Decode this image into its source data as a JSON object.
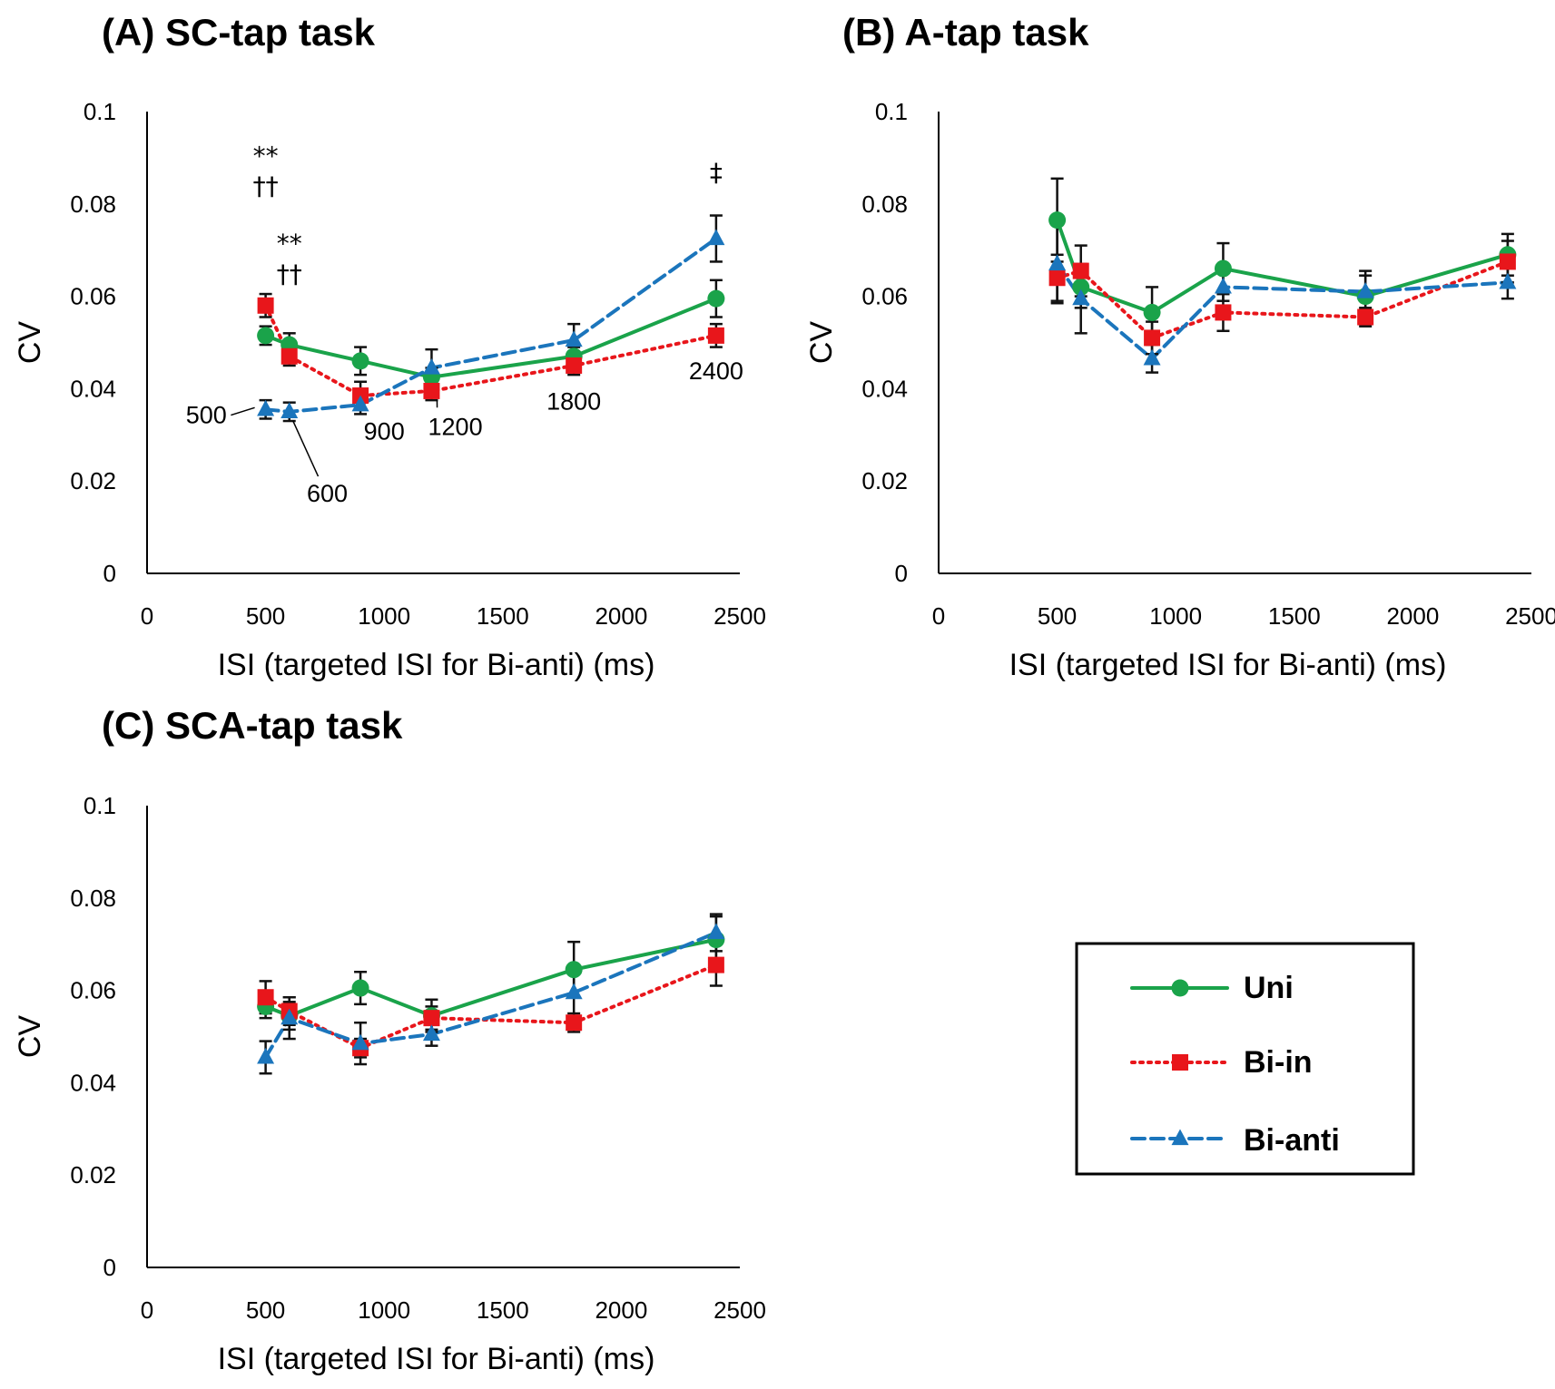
{
  "colors": {
    "Uni": "#1aa34a",
    "Bi-in": "#e8161b",
    "Bi-anti": "#1b75bc",
    "axis": "#000000"
  },
  "legend": {
    "items": [
      {
        "name": "Uni",
        "marker": "circle",
        "dash": "solid"
      },
      {
        "name": "Bi-in",
        "marker": "square",
        "dash": "dotted"
      },
      {
        "name": "Bi-anti",
        "marker": "triangle",
        "dash": "dashed"
      }
    ]
  },
  "chart_data": [
    {
      "id": "A",
      "type": "line",
      "title": "(A) SC-tap task",
      "xlabel": "ISI (targeted ISI for Bi-anti) (ms)",
      "ylabel": "CV",
      "xlim": [
        0,
        2500
      ],
      "ylim": [
        0,
        0.1
      ],
      "xticks": [
        0,
        500,
        1000,
        1500,
        2000,
        2500
      ],
      "xticklabels": [
        "0",
        "500",
        "1000",
        "1500",
        "2000",
        "2500"
      ],
      "yticks": [
        0,
        0.02,
        0.04,
        0.06,
        0.08,
        0.1
      ],
      "yticklabels": [
        "0",
        "0.02",
        "0.04",
        "0.06",
        "0.08",
        "0.1"
      ],
      "x": [
        500,
        600,
        900,
        1200,
        1800,
        2400
      ],
      "series": [
        {
          "name": "Uni",
          "values": [
            0.0515,
            0.0495,
            0.046,
            0.0425,
            0.047,
            0.0595
          ],
          "errors": [
            0.002,
            0.0025,
            0.003,
            0.002,
            0.002,
            0.004
          ]
        },
        {
          "name": "Bi-in",
          "values": [
            0.058,
            0.047,
            0.0385,
            0.0395,
            0.045,
            0.0515
          ],
          "errors": [
            0.0025,
            0.002,
            0.003,
            0.002,
            0.002,
            0.0025
          ]
        },
        {
          "name": "Bi-anti",
          "values": [
            0.0355,
            0.035,
            0.0365,
            0.0445,
            0.0505,
            0.0725
          ],
          "errors": [
            0.002,
            0.002,
            0.002,
            0.004,
            0.0035,
            0.005
          ]
        }
      ],
      "annotations": [
        {
          "text": "**",
          "x": 500,
          "y": 0.0885
        },
        {
          "text": "††",
          "x": 500,
          "y": 0.082
        },
        {
          "text": "**",
          "x": 600,
          "y": 0.0695
        },
        {
          "text": "††",
          "x": 600,
          "y": 0.063
        },
        {
          "text": "‡",
          "x": 2400,
          "y": 0.085
        }
      ],
      "point_labels": [
        {
          "text": "500",
          "x": 250,
          "y": 0.0325
        },
        {
          "text": "600",
          "x": 760,
          "y": 0.0155
        },
        {
          "text": "900",
          "x": 1000,
          "y": 0.029
        },
        {
          "text": "1200",
          "x": 1300,
          "y": 0.03
        },
        {
          "text": "1800",
          "x": 1800,
          "y": 0.0355
        },
        {
          "text": "2400",
          "x": 2400,
          "y": 0.042
        }
      ]
    },
    {
      "id": "B",
      "type": "line",
      "title": "(B) A-tap task",
      "xlabel": "ISI (targeted ISI for Bi-anti) (ms)",
      "ylabel": "CV",
      "xlim": [
        0,
        2500
      ],
      "ylim": [
        0,
        0.1
      ],
      "xticks": [
        0,
        500,
        1000,
        1500,
        2000,
        2500
      ],
      "xticklabels": [
        "0",
        "500",
        "1000",
        "1500",
        "2000",
        "2500"
      ],
      "yticks": [
        0,
        0.02,
        0.04,
        0.06,
        0.08,
        0.1
      ],
      "yticklabels": [
        "0",
        "0.02",
        "0.04",
        "0.06",
        "0.08",
        "0.1"
      ],
      "x": [
        500,
        600,
        900,
        1200,
        1800,
        2400
      ],
      "series": [
        {
          "name": "Uni",
          "values": [
            0.0765,
            0.062,
            0.0565,
            0.066,
            0.06,
            0.069
          ],
          "errors": [
            0.009,
            0.0045,
            0.0055,
            0.0055,
            0.0045,
            0.0045
          ]
        },
        {
          "name": "Bi-in",
          "values": [
            0.064,
            0.0655,
            0.051,
            0.0565,
            0.0555,
            0.0675
          ],
          "errors": [
            0.005,
            0.0055,
            0.0035,
            0.004,
            0.002,
            0.0045
          ]
        },
        {
          "name": "Bi-anti",
          "values": [
            0.067,
            0.0595,
            0.0465,
            0.062,
            0.061,
            0.063
          ],
          "errors": [
            0.0085,
            0.0075,
            0.003,
            0.003,
            0.0045,
            0.0035
          ]
        }
      ]
    },
    {
      "id": "C",
      "type": "line",
      "title": "(C) SCA-tap task",
      "xlabel": "ISI (targeted ISI for Bi-anti) (ms)",
      "ylabel": "CV",
      "xlim": [
        0,
        2500
      ],
      "ylim": [
        0,
        0.1
      ],
      "xticks": [
        0,
        500,
        1000,
        1500,
        2000,
        2500
      ],
      "xticklabels": [
        "0",
        "500",
        "1000",
        "1500",
        "2000",
        "2500"
      ],
      "yticks": [
        0,
        0.02,
        0.04,
        0.06,
        0.08,
        0.1
      ],
      "yticklabels": [
        "0",
        "0.02",
        "0.04",
        "0.06",
        "0.08",
        "0.1"
      ],
      "x": [
        500,
        600,
        900,
        1200,
        1800,
        2400
      ],
      "series": [
        {
          "name": "Uni",
          "values": [
            0.0565,
            0.0545,
            0.0605,
            0.0545,
            0.0645,
            0.071
          ],
          "errors": [
            0.0025,
            0.003,
            0.0035,
            0.0035,
            0.006,
            0.005
          ]
        },
        {
          "name": "Bi-in",
          "values": [
            0.0585,
            0.0555,
            0.0475,
            0.054,
            0.053,
            0.0655
          ],
          "errors": [
            0.0035,
            0.003,
            0.002,
            0.0025,
            0.002,
            0.0045
          ]
        },
        {
          "name": "Bi-anti",
          "values": [
            0.0455,
            0.054,
            0.0485,
            0.0505,
            0.0595,
            0.0725
          ],
          "errors": [
            0.0035,
            0.0045,
            0.0045,
            0.0025,
            0.0055,
            0.004
          ]
        }
      ]
    }
  ]
}
